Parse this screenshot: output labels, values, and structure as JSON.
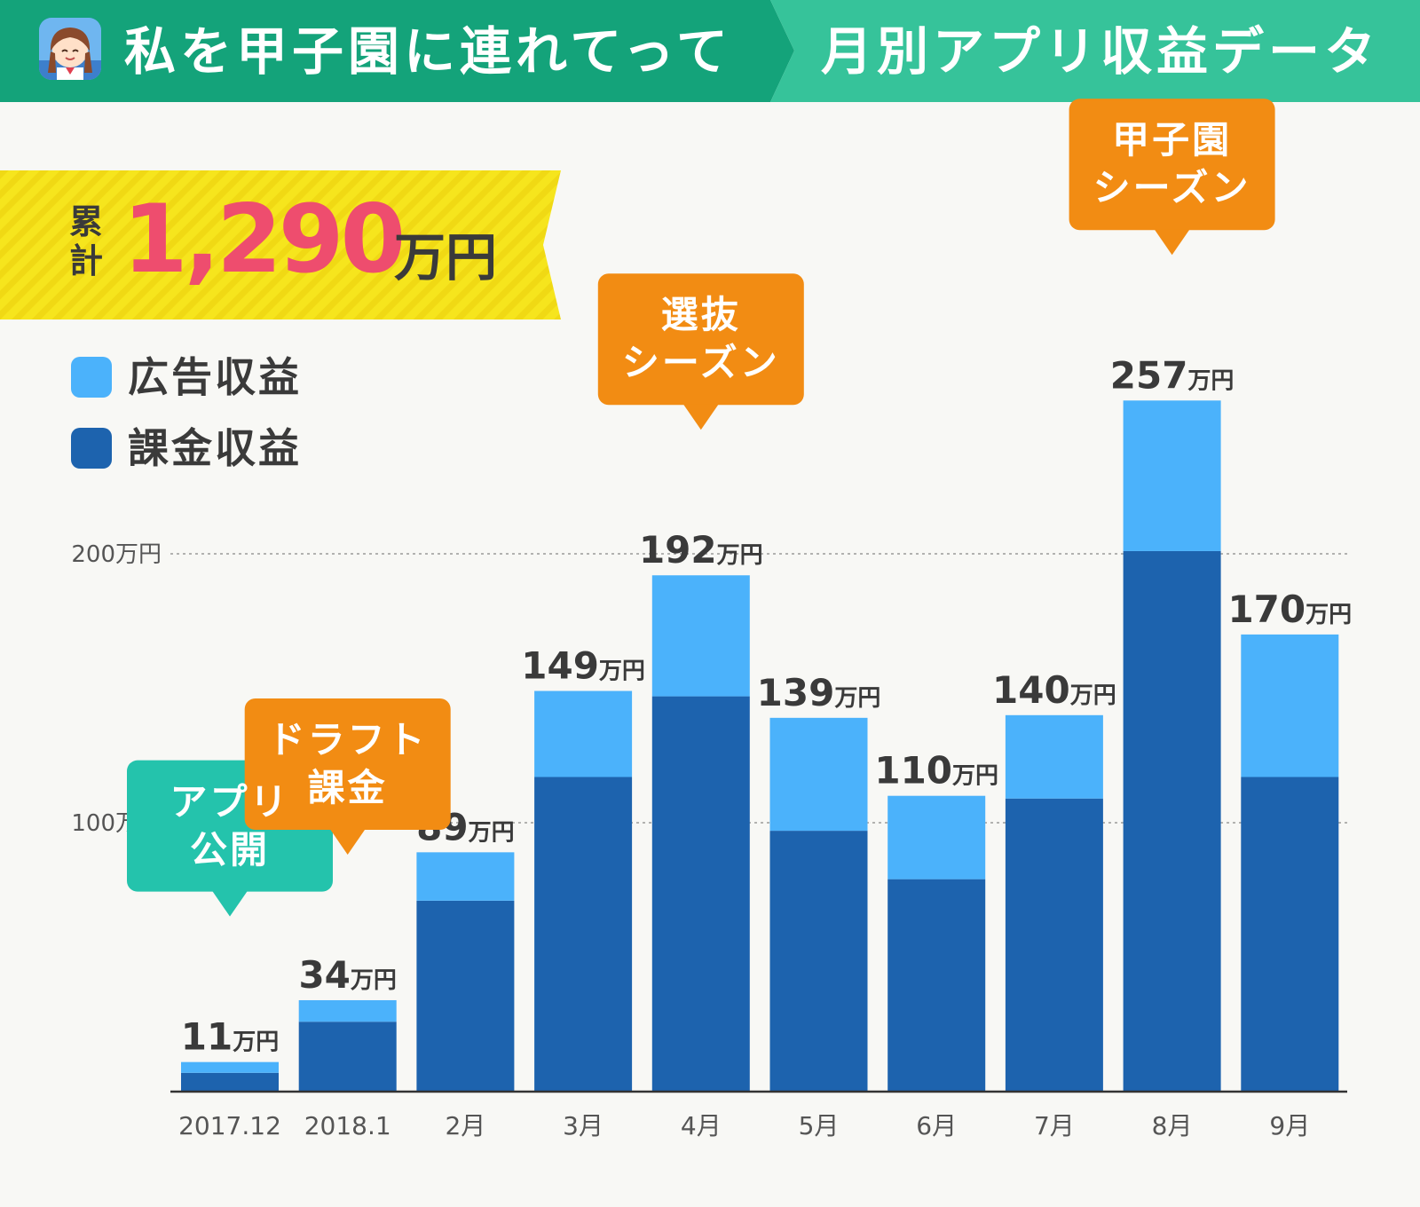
{
  "header": {
    "app_title": "私を甲子園に連れてって",
    "chart_title": "月別アプリ収益データ",
    "colors": {
      "left": "#14a37a",
      "right": "#36c39a"
    }
  },
  "summary": {
    "label": "累計",
    "value": "1,290",
    "unit": "万円"
  },
  "legend": [
    {
      "label": "広告収益",
      "color": "#4bb2fb"
    },
    {
      "label": "課金収益",
      "color": "#1d63ae"
    }
  ],
  "callouts": [
    {
      "text": "アプリ\n公開",
      "month": "2017.12",
      "color": "#24c3ac"
    },
    {
      "text": "ドラフト\n課金",
      "month": "2018.1",
      "color": "#f28c13"
    },
    {
      "text": "選抜\nシーズン",
      "month": "4月",
      "color": "#f28c13"
    },
    {
      "text": "甲子園\nシーズン",
      "month": "8月",
      "color": "#f28c13"
    }
  ],
  "chart_data": {
    "type": "bar",
    "stacked": true,
    "categories": [
      "2017.12",
      "2018.1",
      "2月",
      "3月",
      "4月",
      "5月",
      "6月",
      "7月",
      "8月",
      "9月"
    ],
    "series": [
      {
        "name": "課金収益",
        "color": "#1d63ae",
        "values": [
          7,
          26,
          71,
          117,
          147,
          97,
          79,
          109,
          201,
          117
        ]
      },
      {
        "name": "広告収益",
        "color": "#4bb2fb",
        "values": [
          4,
          8,
          18,
          32,
          45,
          42,
          31,
          31,
          56,
          53
        ]
      }
    ],
    "totals": [
      11,
      34,
      89,
      149,
      192,
      139,
      110,
      140,
      257,
      170
    ],
    "total_unit": "万円",
    "y_ticks": [
      {
        "value": 100,
        "label": "100万円"
      },
      {
        "value": 200,
        "label": "200万円"
      }
    ],
    "ylim": [
      0,
      270
    ],
    "grid": "dotted horizontal",
    "legend_position": "top-left"
  }
}
